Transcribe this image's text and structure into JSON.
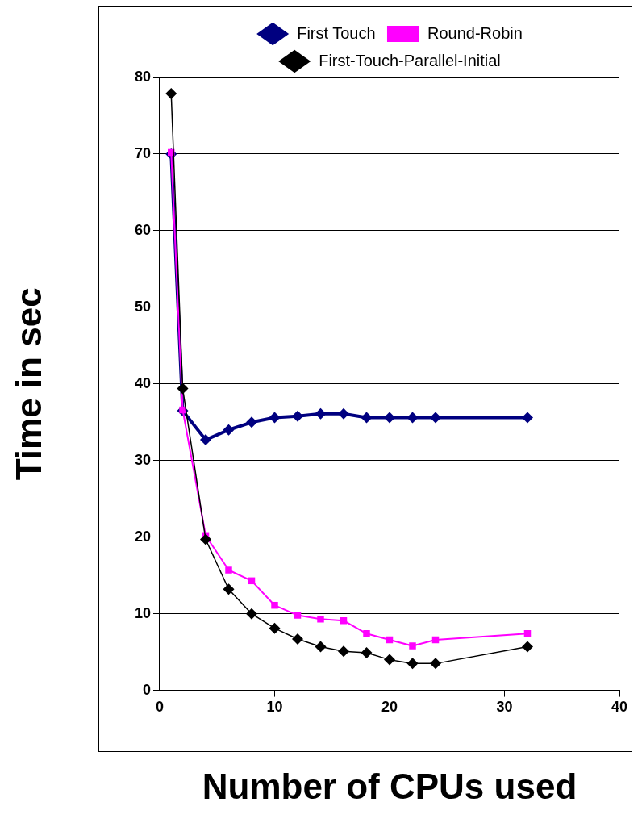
{
  "chart_data": {
    "type": "line",
    "xlabel": "Number of CPUs used",
    "ylabel": "Time in sec",
    "x": [
      1,
      2,
      4,
      6,
      8,
      10,
      12,
      14,
      16,
      18,
      20,
      22,
      24,
      32
    ],
    "series": [
      {
        "name": "First Touch",
        "color": "#000080",
        "marker": "diamond",
        "values": [
          70,
          36.5,
          32.7,
          34,
          35,
          35.6,
          35.8,
          36.1,
          36.1,
          35.6,
          35.6,
          35.6,
          35.6,
          35.6
        ]
      },
      {
        "name": "Round-Robin",
        "color": "#ff00ff",
        "marker": "square",
        "values": [
          70.2,
          36.6,
          20.2,
          15.7,
          14.3,
          11.1,
          9.8,
          9.3,
          9.1,
          7.4,
          6.6,
          5.8,
          6.6,
          7.4
        ]
      },
      {
        "name": "First-Touch-Parallel-Initial",
        "color": "#000000",
        "marker": "diamond",
        "values": [
          77.9,
          39.4,
          19.7,
          13.2,
          10,
          8.1,
          6.7,
          5.7,
          5.1,
          4.9,
          4,
          3.5,
          3.5,
          5.7
        ]
      }
    ],
    "xlim": [
      0,
      40
    ],
    "xticks": [
      0,
      10,
      20,
      30,
      40
    ],
    "ylim": [
      0,
      80
    ],
    "yticks": [
      0,
      10,
      20,
      30,
      40,
      50,
      60,
      70,
      80
    ],
    "grid": "y",
    "legend": "top",
    "line_style": "solid"
  }
}
